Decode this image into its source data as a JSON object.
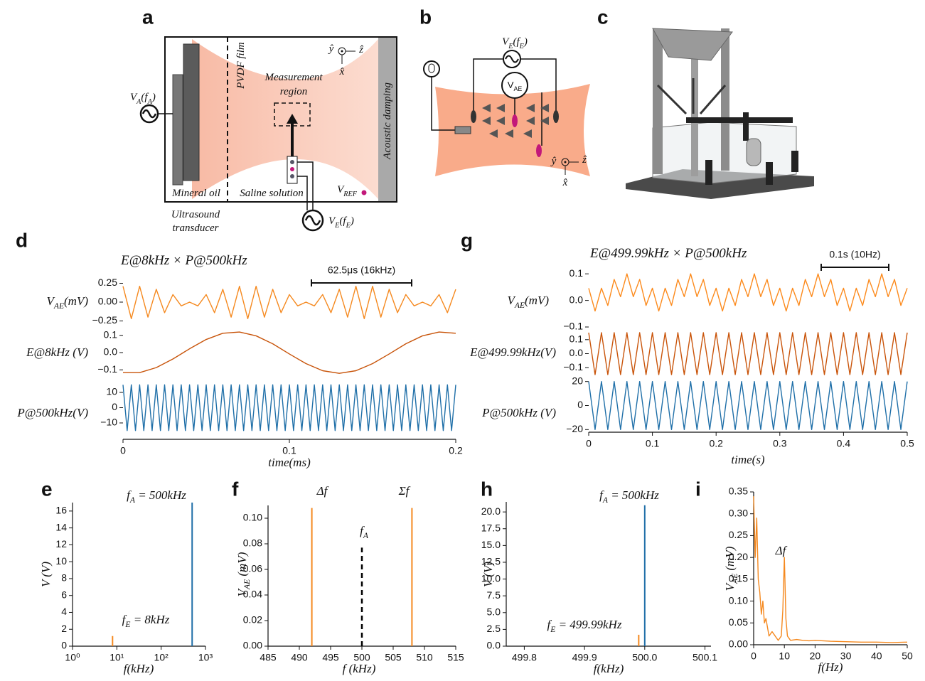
{
  "diagrams": {
    "a": {
      "letter": "a",
      "source": "VA(fA)",
      "film": "PVDF film",
      "region": [
        "Measurement",
        "region"
      ],
      "damping": "Acoustic damping",
      "oil": "Mineral oil",
      "saline": "Saline solution",
      "ref": "VREF",
      "transducer": [
        "Ultrasound",
        "transducer"
      ],
      "drive": "VE(fE)",
      "axes": [
        "ŷ",
        "ẑ",
        "x̂"
      ]
    },
    "b": {
      "letter": "b",
      "drive": "VE(fE)",
      "meter": "VAE",
      "axes": [
        "ŷ",
        "ẑ",
        "x̂"
      ]
    },
    "c": {
      "letter": "c"
    }
  },
  "chart_data": [
    {
      "type": "line",
      "panel": "d",
      "title": "E@8kHz × P@500kHz",
      "scalebar": "62.5μs (16kHz)",
      "ylabel": "VAE(mV)",
      "x": [
        0,
        0.005,
        0.01,
        0.015,
        0.02,
        0.025,
        0.03,
        0.035,
        0.04,
        0.045,
        0.05,
        0.055,
        0.06,
        0.065,
        0.07,
        0.075,
        0.08,
        0.085,
        0.09,
        0.095,
        0.1,
        0.105,
        0.11,
        0.115,
        0.12,
        0.125,
        0.13,
        0.135,
        0.14,
        0.145,
        0.15,
        0.155,
        0.16,
        0.165,
        0.17,
        0.175,
        0.18,
        0.185,
        0.19,
        0.195,
        0.2
      ],
      "series": [
        {
          "color": "#f5891f",
          "values": [
            0.21,
            -0.22,
            0.21,
            -0.2,
            0.17,
            -0.14,
            0.1,
            -0.05,
            0,
            -0.05,
            0.1,
            -0.14,
            0.17,
            -0.2,
            0.21,
            -0.22,
            0.21,
            -0.2,
            0.17,
            -0.14,
            0.1,
            -0.05,
            0,
            -0.05,
            0.1,
            -0.14,
            0.17,
            -0.2,
            0.21,
            -0.22,
            0.21,
            -0.2,
            0.17,
            -0.14,
            0.1,
            -0.05,
            0,
            -0.05,
            0.1,
            -0.14,
            0.17
          ]
        }
      ],
      "xlim": [
        0,
        0.2
      ],
      "ylim": [
        -0.33,
        0.33
      ],
      "yticks": [
        0.25,
        {
          "value": 0,
          "label": "0.00"
        },
        {
          "value": -0.25,
          "label": "−0.25"
        }
      ]
    },
    {
      "type": "line",
      "ylabel": "E@8kHz (V)",
      "x": [
        0,
        0.01,
        0.02,
        0.03,
        0.04,
        0.05,
        0.06,
        0.07,
        0.08,
        0.09,
        0.1,
        0.11,
        0.12,
        0.13,
        0.14,
        0.15,
        0.16,
        0.17,
        0.18,
        0.19,
        0.2
      ],
      "series": [
        {
          "color": "#c8540a",
          "values": [
            -0.116,
            -0.116,
            -0.087,
            -0.037,
            0.022,
            0.076,
            0.112,
            0.119,
            0.097,
            0.051,
            -0.008,
            -0.064,
            -0.105,
            -0.12,
            -0.105,
            -0.064,
            -0.008,
            0.051,
            0.097,
            0.119,
            0.112
          ]
        }
      ],
      "xlim": [
        0,
        0.2
      ],
      "ylim": [
        -0.14,
        0.14
      ],
      "yticks": [
        0.1,
        {
          "value": 0,
          "label": "0.0"
        },
        {
          "value": -0.1,
          "label": "−0.1"
        }
      ]
    },
    {
      "type": "line",
      "ylabel": "P@500kHz(V)",
      "xlabel": "time(ms)",
      "x": [
        0,
        0.0025,
        0.005,
        0.0075,
        0.01,
        0.0125,
        0.015,
        0.0175,
        0.02,
        0.0225,
        0.025,
        0.0275,
        0.03,
        0.0325,
        0.035,
        0.0375,
        0.04,
        0.0425,
        0.045,
        0.0475,
        0.05,
        0.0525,
        0.055,
        0.0575,
        0.06,
        0.0625,
        0.065,
        0.0675,
        0.07,
        0.0725,
        0.075,
        0.0775,
        0.08,
        0.0825,
        0.085,
        0.0875,
        0.09,
        0.0925,
        0.095,
        0.0975,
        0.1,
        0.1025,
        0.105,
        0.1075,
        0.11,
        0.1125,
        0.115,
        0.1175,
        0.12,
        0.1225,
        0.125,
        0.1275,
        0.13,
        0.1325,
        0.135,
        0.1375,
        0.14,
        0.1425,
        0.145,
        0.1475,
        0.15,
        0.1525,
        0.155,
        0.1575,
        0.16,
        0.1625,
        0.165,
        0.1675,
        0.17,
        0.1725,
        0.175,
        0.1775,
        0.18,
        0.1825,
        0.185,
        0.1875,
        0.19,
        0.1925,
        0.195,
        0.1975,
        0.2
      ],
      "series": [
        {
          "color": "#1f6fa8",
          "values": [
            15,
            -15,
            15,
            -15,
            15,
            -15,
            15,
            -15,
            15,
            -15,
            15,
            -15,
            15,
            -15,
            15,
            -15,
            15,
            -15,
            15,
            -15,
            15,
            -15,
            15,
            -15,
            15,
            -15,
            15,
            -15,
            15,
            -15,
            15,
            -15,
            15,
            -15,
            15,
            -15,
            15,
            -15,
            15,
            -15,
            15,
            -15,
            15,
            -15,
            15,
            -15,
            15,
            -15,
            15,
            -15,
            15,
            -15,
            15,
            -15,
            15,
            -15,
            15,
            -15,
            15,
            -15,
            15,
            -15,
            15,
            -15,
            15,
            -15,
            15,
            -15,
            15,
            -15,
            15,
            -15,
            15,
            -15,
            15,
            -15,
            15,
            -15,
            15,
            -15,
            15
          ]
        }
      ],
      "xlim": [
        0,
        0.2
      ],
      "ylim": [
        -17,
        17
      ],
      "yticks": [
        10,
        0,
        {
          "value": -10,
          "label": "−10"
        }
      ],
      "xticks": [
        0,
        0.1,
        0.2
      ]
    },
    {
      "type": "line",
      "panel": "g",
      "title": "E@499.99kHz × P@500kHz",
      "scalebar": "0.1s (10Hz)",
      "ylabel": "VAE(mV)",
      "x": [
        0,
        0.01,
        0.02,
        0.03,
        0.04,
        0.05,
        0.06,
        0.07,
        0.08,
        0.09,
        0.1,
        0.11,
        0.12,
        0.13,
        0.14,
        0.15,
        0.16,
        0.17,
        0.18,
        0.19,
        0.2,
        0.21,
        0.22,
        0.23,
        0.24,
        0.25,
        0.26,
        0.27,
        0.28,
        0.29,
        0.3,
        0.31,
        0.32,
        0.33,
        0.34,
        0.35,
        0.36,
        0.37,
        0.38,
        0.39,
        0.4,
        0.41,
        0.42,
        0.43,
        0.44,
        0.45,
        0.46,
        0.47,
        0.48,
        0.49,
        0.5
      ],
      "series": [
        {
          "color": "#fc8a1c",
          "values": [
            0.046,
            -0.04,
            0.046,
            -0.019,
            0.079,
            0.014,
            0.1,
            0.014,
            0.079,
            -0.019,
            0.046,
            -0.04,
            0.046,
            -0.019,
            0.079,
            0.014,
            0.1,
            0.014,
            0.079,
            -0.019,
            0.046,
            -0.04,
            0.046,
            -0.019,
            0.079,
            0.014,
            0.1,
            0.014,
            0.079,
            -0.019,
            0.046,
            -0.04,
            0.046,
            -0.019,
            0.079,
            0.014,
            0.1,
            0.014,
            0.079,
            -0.019,
            0.046,
            -0.04,
            0.046,
            -0.019,
            0.079,
            0.014,
            0.1,
            0.014,
            0.079,
            -0.019,
            0.046
          ]
        }
      ],
      "xlim": [
        0,
        0.5
      ],
      "ylim": [
        -0.1,
        0.13
      ],
      "yticks": [
        0.1,
        {
          "value": 0,
          "label": "0.0"
        },
        {
          "value": -0.1,
          "label": "−0.1"
        }
      ]
    },
    {
      "type": "line",
      "ylabel": "E@499.99kHz(V)",
      "x": [
        0,
        0.01,
        0.02,
        0.03,
        0.04,
        0.05,
        0.06,
        0.07,
        0.08,
        0.09,
        0.1,
        0.11,
        0.12,
        0.13,
        0.14,
        0.15,
        0.16,
        0.17,
        0.18,
        0.19,
        0.2,
        0.21,
        0.22,
        0.23,
        0.24,
        0.25,
        0.26,
        0.27,
        0.28,
        0.29,
        0.3,
        0.31,
        0.32,
        0.33,
        0.34,
        0.35,
        0.36,
        0.37,
        0.38,
        0.39,
        0.4,
        0.41,
        0.42,
        0.43,
        0.44,
        0.45,
        0.46,
        0.47,
        0.48,
        0.49,
        0.5
      ],
      "series": [
        {
          "color": "#c9540a",
          "values": [
            0.15,
            -0.15,
            0.15,
            -0.15,
            0.15,
            -0.15,
            0.15,
            -0.15,
            0.15,
            -0.15,
            0.15,
            -0.15,
            0.15,
            -0.15,
            0.15,
            -0.15,
            0.15,
            -0.15,
            0.15,
            -0.15,
            0.15,
            -0.15,
            0.15,
            -0.15,
            0.15,
            -0.15,
            0.15,
            -0.15,
            0.15,
            -0.15,
            0.15,
            -0.15,
            0.15,
            -0.15,
            0.15,
            -0.15,
            0.15,
            -0.15,
            0.15,
            -0.15,
            0.15,
            -0.15,
            0.15,
            -0.15,
            0.15,
            -0.15,
            0.15,
            -0.15,
            0.15,
            -0.15,
            0.15
          ]
        }
      ],
      "xlim": [
        0,
        0.5
      ],
      "ylim": [
        -0.17,
        0.17
      ],
      "yticks": [
        0.1,
        {
          "value": 0,
          "label": "0.0"
        },
        {
          "value": -0.1,
          "label": "−0.1"
        }
      ]
    },
    {
      "type": "line",
      "ylabel": "P@500kHz (V)",
      "xlabel": "time(s)",
      "x": [
        0,
        0.01,
        0.02,
        0.03,
        0.04,
        0.05,
        0.06,
        0.07,
        0.08,
        0.09,
        0.1,
        0.11,
        0.12,
        0.13,
        0.14,
        0.15,
        0.16,
        0.17,
        0.18,
        0.19,
        0.2,
        0.21,
        0.22,
        0.23,
        0.24,
        0.25,
        0.26,
        0.27,
        0.28,
        0.29,
        0.3,
        0.31,
        0.32,
        0.33,
        0.34,
        0.35,
        0.36,
        0.37,
        0.38,
        0.39,
        0.4,
        0.41,
        0.42,
        0.43,
        0.44,
        0.45,
        0.46,
        0.47,
        0.48,
        0.49,
        0.5
      ],
      "series": [
        {
          "color": "#1f6fa8",
          "values": [
            20,
            -20,
            20,
            -20,
            20,
            -20,
            20,
            -20,
            20,
            -20,
            20,
            -20,
            20,
            -20,
            20,
            -20,
            20,
            -20,
            20,
            -20,
            20,
            -20,
            20,
            -20,
            20,
            -20,
            20,
            -20,
            20,
            -20,
            20,
            -20,
            20,
            -20,
            20,
            -20,
            20,
            -20,
            20,
            -20,
            20,
            -20,
            20,
            -20,
            20,
            -20,
            20,
            -20,
            20,
            -20,
            20
          ]
        }
      ],
      "xlim": [
        0,
        0.5
      ],
      "ylim": [
        -21,
        21
      ],
      "yticks": [
        20,
        0,
        {
          "value": -20,
          "label": "−20"
        }
      ],
      "xticks": [
        0,
        0.1,
        0.2,
        0.3,
        0.4,
        0.5
      ]
    },
    {
      "type": "stem",
      "panel": "e",
      "ylabel": "V (V)",
      "xlabel": "f(kHz)",
      "xscale": "log",
      "xlim": [
        1,
        1000
      ],
      "ylim": [
        0,
        17
      ],
      "xticks": [
        {
          "value": 1,
          "label": "10⁰"
        },
        {
          "value": 10,
          "label": "10¹"
        },
        {
          "value": 100,
          "label": "10²"
        },
        {
          "value": 1000,
          "label": "10³"
        }
      ],
      "yticks": [
        0,
        2,
        4,
        6,
        8,
        10,
        12,
        14,
        16
      ],
      "series": [
        {
          "color": "#f5891f",
          "x": [
            8
          ],
          "values": [
            1.2
          ]
        },
        {
          "color": "#1f6fa8",
          "x": [
            500
          ],
          "values": [
            17
          ]
        }
      ],
      "annotations": [
        "fA = 500kHz",
        "fE = 8kHz"
      ]
    },
    {
      "type": "stem",
      "panel": "f",
      "ylabel": "VAE (mV)",
      "xlabel": "f (kHz)",
      "xlim": [
        485,
        515
      ],
      "ylim": [
        0,
        0.11
      ],
      "xticks": [
        485,
        490,
        495,
        500,
        505,
        510,
        515
      ],
      "yticks": [
        {
          "value": 0,
          "label": "0.00"
        },
        0.02,
        0.04,
        0.06,
        0.08,
        {
          "value": 0.1,
          "label": "0.10"
        }
      ],
      "series": [
        {
          "color": "#f5891f",
          "x": [
            492,
            508
          ],
          "values": [
            0.108,
            0.108
          ]
        },
        {
          "color": "#000000",
          "linestyle": "dashed",
          "x": [
            500
          ],
          "values": [
            0.077
          ]
        }
      ],
      "annotations": [
        "Δf",
        "Σf",
        "fA"
      ]
    },
    {
      "type": "stem",
      "panel": "h",
      "ylabel": "V (V)",
      "xlabel": "f(kHz)",
      "xlim": [
        499.77,
        500.11
      ],
      "ylim": [
        0,
        21.5
      ],
      "xticks": [
        499.8,
        499.9,
        {
          "value": 500,
          "label": "500.0"
        },
        500.1
      ],
      "yticks": [
        {
          "value": 0,
          "label": "0.0"
        },
        2.5,
        {
          "value": 5,
          "label": "5.0"
        },
        7.5,
        {
          "value": 10,
          "label": "10.0"
        },
        12.5,
        {
          "value": 15,
          "label": "15.0"
        },
        17.5,
        {
          "value": 20,
          "label": "20.0"
        }
      ],
      "series": [
        {
          "color": "#f5891f",
          "x": [
            499.99
          ],
          "values": [
            1.7
          ]
        },
        {
          "color": "#1f6fa8",
          "x": [
            500
          ],
          "values": [
            21
          ]
        }
      ],
      "annotations": [
        "fA = 500kHz",
        "fE = 499.99kHz"
      ]
    },
    {
      "type": "line",
      "panel": "i",
      "ylabel": "VAE (mV)",
      "xlabel": "f(Hz)",
      "x": [
        0,
        0.5,
        1,
        1.5,
        2,
        2.5,
        3,
        3.5,
        4,
        5,
        6,
        7,
        8,
        9,
        9.5,
        10,
        10.5,
        11,
        12,
        14,
        16,
        18,
        20,
        25,
        30,
        35,
        40,
        45,
        50
      ],
      "series": [
        {
          "color": "#f5891f",
          "values": [
            0.34,
            0.2,
            0.29,
            0.15,
            0.12,
            0.07,
            0.1,
            0.05,
            0.06,
            0.02,
            0.03,
            0.02,
            0.01,
            0.02,
            0.08,
            0.2,
            0.06,
            0.02,
            0.01,
            0.012,
            0.01,
            0.009,
            0.01,
            0.008,
            0.007,
            0.006,
            0.006,
            0.005,
            0.006
          ]
        }
      ],
      "xlim": [
        0,
        50
      ],
      "ylim": [
        0,
        0.35
      ],
      "xticks": [
        0,
        10,
        20,
        30,
        40,
        50
      ],
      "yticks": [
        {
          "value": 0,
          "label": "0.00"
        },
        0.05,
        {
          "value": 0.1,
          "label": "0.10"
        },
        0.15,
        {
          "value": 0.2,
          "label": "0.20"
        },
        0.25,
        {
          "value": 0.3,
          "label": "0.30"
        },
        0.35
      ],
      "annotations": [
        "Δf"
      ]
    }
  ]
}
